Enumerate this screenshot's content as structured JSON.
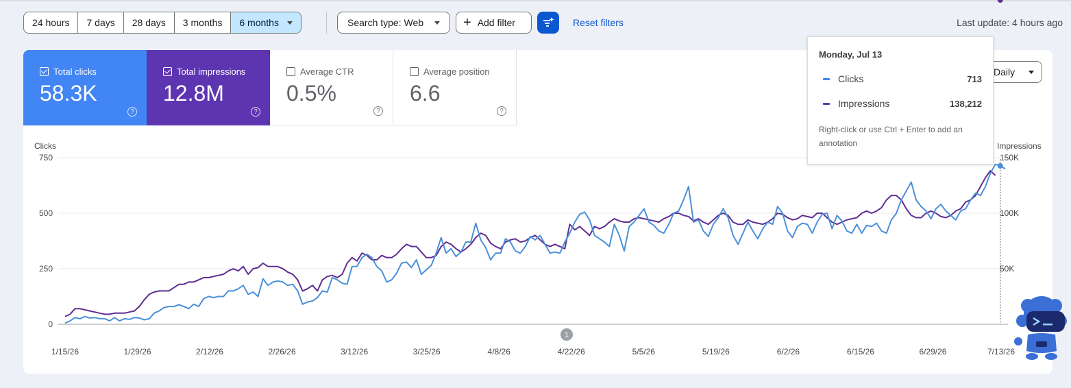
{
  "date_ranges": [
    {
      "label": "24 hours",
      "active": false
    },
    {
      "label": "7 days",
      "active": false
    },
    {
      "label": "28 days",
      "active": false
    },
    {
      "label": "3 months",
      "active": false
    },
    {
      "label": "6 months",
      "active": true
    }
  ],
  "toolbar": {
    "search_type": "Search type: Web",
    "add_filter": "Add filter",
    "plus_icon": "+",
    "reset_filters": "Reset filters",
    "last_update": "Last update: 4 hours ago"
  },
  "metrics": {
    "clicks": {
      "label": "Total clicks",
      "value": "58.3K",
      "checked": true,
      "color": "#4285f4"
    },
    "impressions": {
      "label": "Total impressions",
      "value": "12.8M",
      "checked": true,
      "color": "#5e35b1"
    },
    "ctr": {
      "label": "Average CTR",
      "value": "0.5%",
      "checked": false
    },
    "position": {
      "label": "Average position",
      "value": "6.6",
      "checked": false
    },
    "help_glyph": "?"
  },
  "granularity": "Daily",
  "tooltip": {
    "date": "Monday, Jul 13",
    "rows": [
      {
        "name": "Clicks",
        "value": "713",
        "color": "#4285f4"
      },
      {
        "name": "Impressions",
        "value": "138,212",
        "color": "#5e35b1"
      }
    ],
    "hint": "Right-click or use Ctrl + Enter to add an annotation"
  },
  "chart_data": {
    "type": "line",
    "left_axis_label": "Clicks",
    "right_axis_label": "Impressions",
    "left_ticks": [
      "750",
      "500",
      "250",
      "0"
    ],
    "right_ticks": [
      "150K",
      "100K",
      "50K"
    ],
    "ylim_left": [
      0,
      750
    ],
    "ylim_right": [
      0,
      150000
    ],
    "x_tick_labels": [
      "1/15/26",
      "1/29/26",
      "2/12/26",
      "2/26/26",
      "3/12/26",
      "3/25/26",
      "4/8/26",
      "4/22/26",
      "5/5/26",
      "5/19/26",
      "6/2/26",
      "6/15/26",
      "6/29/26",
      "7/13/26"
    ],
    "annotation_marker": "1",
    "series": [
      {
        "name": "Clicks",
        "color": "#4a90d9",
        "values": [
          5,
          15,
          30,
          25,
          35,
          28,
          30,
          25,
          25,
          15,
          30,
          15,
          25,
          22,
          30,
          28,
          20,
          25,
          50,
          60,
          75,
          80,
          80,
          88,
          80,
          70,
          90,
          80,
          115,
          125,
          120,
          125,
          125,
          150,
          150,
          160,
          175,
          135,
          145,
          125,
          205,
          175,
          190,
          195,
          190,
          175,
          180,
          150,
          90,
          100,
          105,
          120,
          150,
          145,
          210,
          200,
          185,
          180,
          260,
          260,
          300,
          315,
          300,
          260,
          240,
          190,
          200,
          230,
          275,
          280,
          255,
          290,
          225,
          245,
          265,
          320,
          390,
          320,
          340,
          305,
          325,
          370,
          370,
          455,
          380,
          345,
          290,
          320,
          320,
          385,
          370,
          330,
          320,
          350,
          395,
          380,
          400,
          360,
          320,
          325,
          320,
          370,
          410,
          460,
          495,
          505,
          470,
          400,
          385,
          370,
          350,
          450,
          400,
          330,
          440,
          460,
          490,
          520,
          460,
          445,
          420,
          410,
          450,
          500,
          510,
          560,
          620,
          460,
          470,
          420,
          395,
          450,
          480,
          520,
          480,
          400,
          360,
          410,
          460,
          420,
          385,
          430,
          460,
          450,
          530,
          500,
          420,
          390,
          440,
          455,
          450,
          410,
          460,
          495,
          500,
          430,
          490,
          465,
          420,
          410,
          450,
          410,
          445,
          440,
          455,
          420,
          410,
          470,
          500,
          560,
          600,
          640,
          560,
          530,
          510,
          475,
          520,
          540,
          510,
          490,
          470,
          510,
          520,
          560,
          590,
          580,
          620,
          680,
          720,
          713,
          700
        ]
      },
      {
        "name": "Impressions",
        "color": "#5e2d91",
        "values": [
          7000,
          9000,
          14000,
          14000,
          13000,
          12000,
          11000,
          10000,
          9000,
          9000,
          10000,
          10000,
          10000,
          11000,
          12000,
          16000,
          22000,
          27000,
          29000,
          30000,
          30000,
          30000,
          33000,
          36000,
          36000,
          38000,
          38000,
          40000,
          42000,
          42000,
          43000,
          44000,
          45000,
          48000,
          50000,
          48000,
          52000,
          45000,
          50000,
          51000,
          55000,
          52000,
          52000,
          52000,
          50000,
          47000,
          45000,
          40000,
          30000,
          32000,
          35000,
          30000,
          40000,
          43000,
          44000,
          42000,
          45000,
          55000,
          60000,
          57000,
          64000,
          62000,
          58000,
          58000,
          62000,
          60000,
          60000,
          63000,
          68000,
          72000,
          70000,
          70000,
          65000,
          60000,
          60000,
          62000,
          70000,
          74000,
          72000,
          68000,
          65000,
          68000,
          72000,
          78000,
          82000,
          80000,
          73000,
          70000,
          68000,
          74000,
          76000,
          77000,
          74000,
          75000,
          78000,
          80000,
          76000,
          72000,
          70000,
          72000,
          70000,
          68000,
          90000,
          85000,
          88000,
          84000,
          80000,
          88000,
          86000,
          88000,
          92000,
          95000,
          93000,
          92000,
          92000,
          95000,
          96000,
          95000,
          94000,
          93000,
          92000,
          95000,
          97000,
          100000,
          100000,
          98000,
          97000,
          93000,
          95000,
          92000,
          90000,
          94000,
          98000,
          100000,
          98000,
          92000,
          90000,
          90000,
          94000,
          92000,
          91000,
          90000,
          92000,
          95000,
          100000,
          99000,
          96000,
          94000,
          95000,
          98000,
          97000,
          96000,
          100000,
          100000,
          96000,
          92000,
          90000,
          92000,
          94000,
          95000,
          96000,
          100000,
          102000,
          100000,
          102000,
          105000,
          112000,
          116000,
          116000,
          112000,
          104000,
          98000,
          96000,
          96000,
          100000,
          102000,
          100000,
          97000,
          96000,
          98000,
          102000,
          104000,
          110000,
          112000,
          116000,
          124000,
          132000,
          138212,
          134000
        ]
      }
    ]
  }
}
